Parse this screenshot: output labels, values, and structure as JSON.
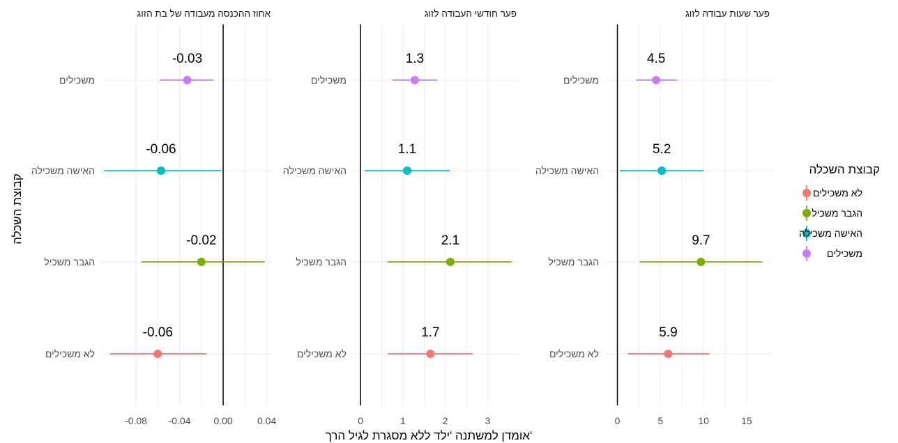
{
  "chart_data": {
    "type": "scatter",
    "subtype": "dot-and-whisker, faceted",
    "xlabel": "אומדן למשתנה 'ילד ללא מסגרת לגיל הרך'",
    "ylabel": "קבוצת השכלה",
    "grid": true,
    "legend_position": "right",
    "legend": {
      "title": "קבוצת השכלה",
      "entries": [
        "לא משכילים",
        "הגבר משכיל",
        "האישה משכילה",
        "משכילים"
      ]
    },
    "categories": [
      "משכילים",
      "האישה משכילה",
      "הגבר משכיל",
      "לא משכילים"
    ],
    "colors": {
      "לא משכילים": "#F8766D",
      "הגבר משכיל": "#7CAE00",
      "האישה משכילה": "#00BFC4",
      "משכילים": "#C77CFF"
    },
    "zero_line_color": "#000000",
    "facets": [
      {
        "title": "אחוז ההכנסה מעבודה של בת הזוג",
        "xlim": [
          -0.112,
          0.046
        ],
        "xticks": [
          -0.08,
          -0.04,
          0.0,
          0.04
        ],
        "xtick_labels": [
          "-0.08",
          "-0.04",
          "0.00",
          "0.04"
        ],
        "points": [
          {
            "group": "משכילים",
            "estimate": -0.033,
            "low": -0.058,
            "high": -0.009,
            "label": "-0.03"
          },
          {
            "group": "האישה משכילה",
            "estimate": -0.057,
            "low": -0.109,
            "high": -0.002,
            "label": "-0.06"
          },
          {
            "group": "הגבר משכיל",
            "estimate": -0.02,
            "low": -0.075,
            "high": 0.038,
            "label": "-0.02"
          },
          {
            "group": "לא משכילים",
            "estimate": -0.06,
            "low": -0.104,
            "high": -0.015,
            "label": "-0.06"
          }
        ]
      },
      {
        "title": "פער חודשי העבודה לזוג",
        "xlim": [
          -0.2,
          3.75
        ],
        "xticks": [
          0,
          1,
          2,
          3
        ],
        "xtick_labels": [
          "0",
          "1",
          "2",
          "3"
        ],
        "points": [
          {
            "group": "משכילים",
            "estimate": 1.28,
            "low": 0.76,
            "high": 1.81,
            "label": "1.3"
          },
          {
            "group": "האישה משכילה",
            "estimate": 1.1,
            "low": 0.1,
            "high": 2.11,
            "label": "1.1"
          },
          {
            "group": "הגבר משכיל",
            "estimate": 2.12,
            "low": 0.64,
            "high": 3.57,
            "label": "2.1"
          },
          {
            "group": "לא משכילים",
            "estimate": 1.65,
            "low": 0.64,
            "high": 2.65,
            "label": "1.7"
          }
        ]
      },
      {
        "title": "פער שעות עבודה לזוג",
        "xlim": [
          -1.5,
          18.0
        ],
        "xticks": [
          0,
          5,
          10,
          15
        ],
        "xtick_labels": [
          "0",
          "5",
          "10",
          "15"
        ],
        "points": [
          {
            "group": "משכילים",
            "estimate": 4.5,
            "low": 2.2,
            "high": 6.9,
            "label": "4.5"
          },
          {
            "group": "האישה משכילה",
            "estimate": 5.15,
            "low": 0.3,
            "high": 10.0,
            "label": "5.2"
          },
          {
            "group": "הגבר משכיל",
            "estimate": 9.7,
            "low": 2.6,
            "high": 16.8,
            "label": "9.7"
          },
          {
            "group": "לא משכילים",
            "estimate": 5.9,
            "low": 1.2,
            "high": 10.7,
            "label": "5.9"
          }
        ]
      }
    ]
  }
}
